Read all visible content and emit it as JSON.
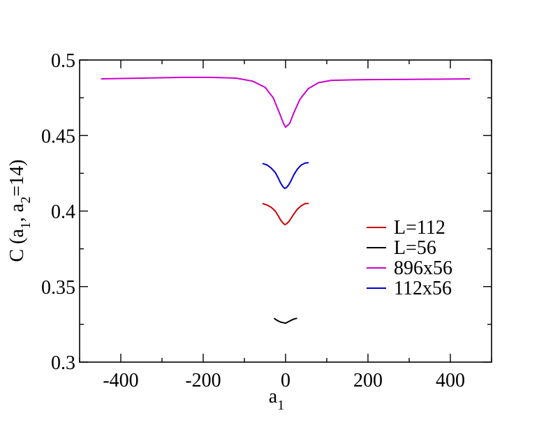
{
  "chart_data": {
    "type": "line",
    "xlabel": {
      "main": "a",
      "sub": "1"
    },
    "ylabel": {
      "pre": "C (a",
      "sub1": "1",
      "mid": ", a",
      "sub2": "2",
      "post": "=14)"
    },
    "xlim": [
      -500,
      500
    ],
    "ylim": [
      0.3,
      0.5
    ],
    "xticks": [
      -400,
      -200,
      0,
      200,
      400
    ],
    "xtick_labels": [
      "-400",
      "-200",
      "0",
      "200",
      "400"
    ],
    "yticks": [
      0.3,
      0.35,
      0.4,
      0.45,
      0.5
    ],
    "ytick_labels": [
      "0.3",
      "0.35",
      "0.4",
      "0.45",
      "0.5"
    ],
    "legend_position": "right",
    "series": [
      {
        "name": "L=112",
        "color": "#cc0000",
        "x": [
          -56,
          -45,
          -35,
          -25,
          -18,
          -12,
          -6,
          -2,
          2,
          8,
          14,
          20,
          28,
          38,
          48,
          56
        ],
        "y": [
          0.405,
          0.404,
          0.4025,
          0.4,
          0.397,
          0.394,
          0.392,
          0.391,
          0.3915,
          0.393,
          0.3955,
          0.398,
          0.401,
          0.4035,
          0.405,
          0.405
        ]
      },
      {
        "name": "L=56",
        "color": "#000000",
        "x": [
          -28,
          -20,
          -12,
          -4,
          0,
          4,
          12,
          20,
          28
        ],
        "y": [
          0.329,
          0.3275,
          0.3265,
          0.326,
          0.3258,
          0.3263,
          0.3275,
          0.3285,
          0.329
        ]
      },
      {
        "name": "896x56",
        "color": "#cc00cc",
        "x": [
          -448,
          -350,
          -250,
          -180,
          -120,
          -80,
          -50,
          -30,
          -15,
          -5,
          0,
          10,
          20,
          35,
          55,
          80,
          110,
          150,
          200,
          300,
          448
        ],
        "y": [
          0.4875,
          0.488,
          0.4885,
          0.4885,
          0.488,
          0.486,
          0.482,
          0.475,
          0.465,
          0.458,
          0.4555,
          0.458,
          0.465,
          0.474,
          0.481,
          0.485,
          0.4865,
          0.4868,
          0.487,
          0.4872,
          0.4875
        ]
      },
      {
        "name": "112x56",
        "color": "#0000cc",
        "x": [
          -56,
          -45,
          -35,
          -25,
          -18,
          -12,
          -6,
          -2,
          2,
          8,
          14,
          20,
          28,
          38,
          48,
          56
        ],
        "y": [
          0.4315,
          0.4305,
          0.4285,
          0.4255,
          0.422,
          0.4185,
          0.416,
          0.415,
          0.4155,
          0.4175,
          0.4205,
          0.424,
          0.4275,
          0.4305,
          0.4318,
          0.432
        ]
      }
    ]
  }
}
